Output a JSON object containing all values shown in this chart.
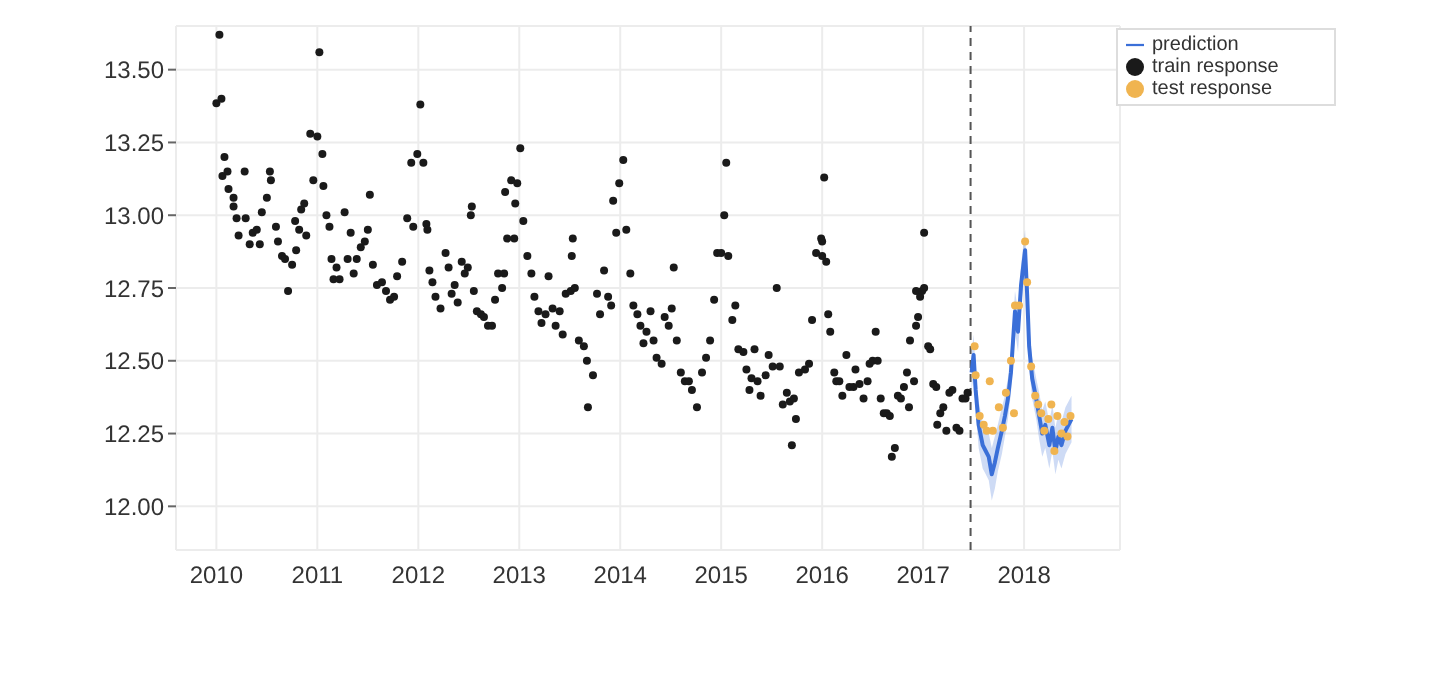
{
  "chart_data": {
    "type": "scatter",
    "xlim": [
      2009.6,
      2018.95
    ],
    "xticks": [
      2010,
      2011,
      2012,
      2013,
      2014,
      2015,
      2016,
      2017,
      2018
    ],
    "ylim": [
      11.85,
      13.65
    ],
    "yticks": [
      {
        "value": 12,
        "label": "12.00"
      },
      {
        "value": 12.25,
        "label": "12.25"
      },
      {
        "value": 12.5,
        "label": "12.50"
      },
      {
        "value": 12.75,
        "label": "12.75"
      },
      {
        "value": 13,
        "label": "13.00"
      },
      {
        "value": 13.25,
        "label": "13.25"
      },
      {
        "value": 13.5,
        "label": "13.50"
      }
    ],
    "grid": true,
    "legend": "top right",
    "ref_lines": [
      {
        "axis": "x",
        "value": 2017.47,
        "label": null,
        "color": "#555555",
        "line_style": "dashed"
      }
    ],
    "series": [
      {
        "name": "prediction",
        "type": "line",
        "color": "#3a6fd8",
        "line_style": "solid",
        "marker": "none",
        "x": [
          2017.48,
          2017.5,
          2017.52,
          2017.55,
          2017.59,
          2017.62,
          2017.65,
          2017.68,
          2017.71,
          2017.74,
          2017.78,
          2017.81,
          2017.84,
          2017.87,
          2017.91,
          2017.94,
          2017.97,
          2018.01,
          2018.03,
          2018.05,
          2018.08,
          2018.12,
          2018.15,
          2018.18,
          2018.21,
          2018.25,
          2018.28,
          2018.31,
          2018.34,
          2018.37,
          2018.41,
          2018.44,
          2018.47
        ],
        "values": [
          12.46,
          12.52,
          12.4,
          12.28,
          12.21,
          12.19,
          12.17,
          12.11,
          12.15,
          12.2,
          12.26,
          12.31,
          12.37,
          12.46,
          12.67,
          12.6,
          12.76,
          12.88,
          12.73,
          12.55,
          12.44,
          12.37,
          12.31,
          12.25,
          12.28,
          12.21,
          12.27,
          12.19,
          12.24,
          12.21,
          12.26,
          12.28,
          12.3
        ],
        "lower": [
          12.4,
          12.45,
          12.33,
          12.2,
          12.13,
          12.11,
          12.09,
          12.02,
          12.06,
          12.12,
          12.18,
          12.24,
          12.3,
          12.39,
          12.6,
          12.53,
          12.69,
          12.81,
          12.66,
          12.48,
          12.37,
          12.3,
          12.23,
          12.17,
          12.2,
          12.13,
          12.19,
          12.11,
          12.16,
          12.13,
          12.18,
          12.2,
          12.22
        ],
        "upper": [
          12.52,
          12.59,
          12.47,
          12.36,
          12.29,
          12.27,
          12.25,
          12.2,
          12.24,
          12.28,
          12.34,
          12.38,
          12.44,
          12.53,
          12.74,
          12.67,
          12.83,
          12.95,
          12.8,
          12.62,
          12.51,
          12.44,
          12.39,
          12.33,
          12.36,
          12.29,
          12.35,
          12.27,
          12.32,
          12.29,
          12.34,
          12.36,
          12.38
        ]
      },
      {
        "name": "train response",
        "marker": "circle",
        "color": "#1a1a1a",
        "x": [
          2010.0,
          2010.03,
          2010.05,
          2010.06,
          2010.08,
          2010.11,
          2010.12,
          2010.17,
          2010.17,
          2010.2,
          2010.22,
          2010.28,
          2010.29,
          2010.33,
          2010.36,
          2010.4,
          2010.43,
          2010.45,
          2010.5,
          2010.53,
          2010.54,
          2010.59,
          2010.61,
          2010.65,
          2010.68,
          2010.71,
          2010.75,
          2010.78,
          2010.79,
          2010.82,
          2010.84,
          2010.87,
          2010.89,
          2010.93,
          2010.96,
          2011.0,
          2011.02,
          2011.05,
          2011.06,
          2011.09,
          2011.12,
          2011.14,
          2011.16,
          2011.19,
          2011.22,
          2011.27,
          2011.3,
          2011.33,
          2011.36,
          2011.39,
          2011.43,
          2011.47,
          2011.5,
          2011.52,
          2011.55,
          2011.59,
          2011.64,
          2011.68,
          2011.72,
          2011.76,
          2011.79,
          2011.84,
          2011.89,
          2011.93,
          2011.95,
          2011.99,
          2012.02,
          2012.05,
          2012.08,
          2012.09,
          2012.11,
          2012.14,
          2012.17,
          2012.22,
          2012.27,
          2012.3,
          2012.33,
          2012.36,
          2012.39,
          2012.43,
          2012.46,
          2012.49,
          2012.52,
          2012.53,
          2012.55,
          2012.58,
          2012.62,
          2012.65,
          2012.69,
          2012.73,
          2012.76,
          2012.79,
          2012.83,
          2012.85,
          2012.86,
          2012.88,
          2012.92,
          2012.95,
          2012.96,
          2012.98,
          2013.01,
          2013.04,
          2013.08,
          2013.12,
          2013.15,
          2013.19,
          2013.22,
          2013.26,
          2013.29,
          2013.33,
          2013.36,
          2013.4,
          2013.43,
          2013.46,
          2013.51,
          2013.52,
          2013.53,
          2013.55,
          2013.59,
          2013.64,
          2013.67,
          2013.68,
          2013.73,
          2013.77,
          2013.8,
          2013.84,
          2013.88,
          2013.91,
          2013.93,
          2013.96,
          2013.99,
          2014.03,
          2014.06,
          2014.1,
          2014.13,
          2014.17,
          2014.2,
          2014.23,
          2014.26,
          2014.3,
          2014.33,
          2014.36,
          2014.41,
          2014.44,
          2014.48,
          2014.51,
          2014.53,
          2014.56,
          2014.6,
          2014.64,
          2014.68,
          2014.71,
          2014.76,
          2014.81,
          2014.85,
          2014.89,
          2014.93,
          2014.96,
          2015.0,
          2015.03,
          2015.05,
          2015.07,
          2015.11,
          2015.14,
          2015.17,
          2015.22,
          2015.25,
          2015.28,
          2015.3,
          2015.33,
          2015.36,
          2015.39,
          2015.44,
          2015.47,
          2015.51,
          2015.55,
          2015.58,
          2015.61,
          2015.65,
          2015.68,
          2015.7,
          2015.72,
          2015.74,
          2015.77,
          2015.83,
          2015.87,
          2015.9,
          2015.94,
          2015.99,
          2016.0,
          2016.0,
          2016.02,
          2016.04,
          2016.06,
          2016.08,
          2016.12,
          2016.14,
          2016.17,
          2016.2,
          2016.24,
          2016.27,
          2016.31,
          2016.33,
          2016.37,
          2016.41,
          2016.45,
          2016.47,
          2016.5,
          2016.53,
          2016.55,
          2016.58,
          2016.61,
          2016.64,
          2016.67,
          2016.69,
          2016.72,
          2016.75,
          2016.78,
          2016.81,
          2016.84,
          2016.86,
          2016.87,
          2016.91,
          2016.93,
          2016.93,
          2016.95,
          2016.97,
          2016.99,
          2017.01,
          2017.01,
          2017.05,
          2017.07,
          2017.1,
          2017.13,
          2017.14,
          2017.17,
          2017.2,
          2017.23,
          2017.26,
          2017.29,
          2017.33,
          2017.36,
          2017.39,
          2017.42,
          2017.44
        ],
        "values": [
          13.385,
          13.62,
          13.4,
          13.135,
          13.2,
          13.15,
          13.09,
          13.06,
          13.03,
          12.99,
          12.93,
          13.15,
          12.99,
          12.9,
          12.94,
          12.95,
          12.9,
          13.01,
          13.06,
          13.15,
          13.12,
          12.96,
          12.91,
          12.86,
          12.85,
          12.74,
          12.83,
          12.98,
          12.88,
          12.95,
          13.02,
          13.04,
          12.93,
          13.28,
          13.12,
          13.27,
          13.56,
          13.21,
          13.1,
          13.0,
          12.96,
          12.85,
          12.78,
          12.82,
          12.78,
          13.01,
          12.85,
          12.94,
          12.8,
          12.85,
          12.89,
          12.91,
          12.95,
          13.07,
          12.83,
          12.76,
          12.77,
          12.74,
          12.71,
          12.72,
          12.79,
          12.84,
          12.99,
          13.18,
          12.96,
          13.21,
          13.38,
          13.18,
          12.97,
          12.95,
          12.81,
          12.77,
          12.72,
          12.68,
          12.87,
          12.82,
          12.73,
          12.76,
          12.7,
          12.84,
          12.8,
          12.82,
          13.0,
          13.03,
          12.74,
          12.67,
          12.66,
          12.65,
          12.62,
          12.62,
          12.71,
          12.8,
          12.75,
          12.8,
          13.08,
          12.92,
          13.12,
          12.92,
          13.04,
          13.11,
          13.23,
          12.98,
          12.86,
          12.8,
          12.72,
          12.67,
          12.63,
          12.66,
          12.79,
          12.68,
          12.62,
          12.67,
          12.59,
          12.73,
          12.74,
          12.86,
          12.92,
          12.75,
          12.57,
          12.55,
          12.5,
          12.34,
          12.45,
          12.73,
          12.66,
          12.81,
          12.72,
          12.69,
          13.05,
          12.94,
          13.11,
          13.19,
          12.95,
          12.8,
          12.69,
          12.66,
          12.62,
          12.56,
          12.6,
          12.67,
          12.57,
          12.51,
          12.49,
          12.65,
          12.62,
          12.68,
          12.82,
          12.57,
          12.46,
          12.43,
          12.43,
          12.4,
          12.34,
          12.46,
          12.51,
          12.57,
          12.71,
          12.87,
          12.87,
          13.0,
          13.18,
          12.86,
          12.64,
          12.69,
          12.54,
          12.53,
          12.47,
          12.4,
          12.44,
          12.54,
          12.43,
          12.38,
          12.45,
          12.52,
          12.48,
          12.75,
          12.48,
          12.35,
          12.39,
          12.36,
          12.21,
          12.37,
          12.3,
          12.46,
          12.47,
          12.49,
          12.64,
          12.87,
          12.92,
          12.86,
          12.91,
          13.13,
          12.84,
          12.66,
          12.6,
          12.46,
          12.43,
          12.43,
          12.38,
          12.52,
          12.41,
          12.41,
          12.47,
          12.42,
          12.37,
          12.43,
          12.49,
          12.5,
          12.6,
          12.5,
          12.37,
          12.32,
          12.32,
          12.31,
          12.17,
          12.2,
          12.38,
          12.37,
          12.41,
          12.46,
          12.34,
          12.57,
          12.43,
          12.62,
          12.74,
          12.65,
          12.72,
          12.74,
          12.75,
          12.94,
          12.55,
          12.54,
          12.42,
          12.41,
          12.28,
          12.32,
          12.34,
          12.26,
          12.39,
          12.4,
          12.27,
          12.26,
          12.37,
          12.37,
          12.39
        ]
      },
      {
        "name": "test response",
        "type": "scatter",
        "marker": "circle",
        "color": "#f0b450",
        "x": [
          2017.51,
          2017.52,
          2017.56,
          2017.6,
          2017.63,
          2017.66,
          2017.69,
          2017.75,
          2017.79,
          2017.82,
          2017.87,
          2017.9,
          2017.91,
          2017.95,
          2018.01,
          2018.03,
          2018.07,
          2018.11,
          2018.14,
          2018.17,
          2018.2,
          2018.24,
          2018.27,
          2018.3,
          2018.33,
          2018.37,
          2018.4,
          2018.43,
          2018.46
        ],
        "values": [
          12.55,
          12.45,
          12.31,
          12.28,
          12.26,
          12.43,
          12.26,
          12.34,
          12.27,
          12.39,
          12.5,
          12.32,
          12.69,
          12.69,
          12.91,
          12.77,
          12.48,
          12.38,
          12.35,
          12.32,
          12.26,
          12.3,
          12.35,
          12.19,
          12.31,
          12.25,
          12.29,
          12.24,
          12.31
        ]
      }
    ]
  }
}
